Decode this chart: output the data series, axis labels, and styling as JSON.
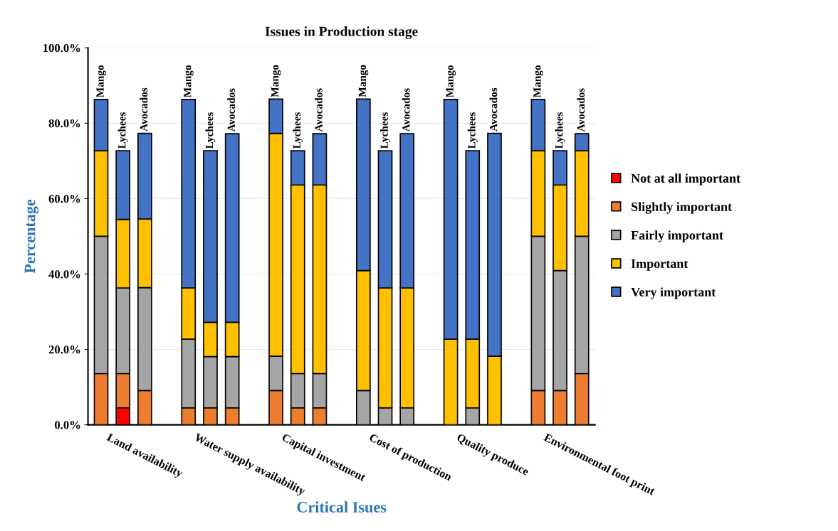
{
  "chart_data": {
    "type": "bar",
    "title": "Issues in Production stage",
    "xlabel": "Critical Isues",
    "ylabel": "Percentage",
    "categories": [
      "Mango",
      "Lychees",
      "Avocados",
      "Mango",
      "Lychees",
      "Avocados",
      "Mango",
      "Lychees",
      "Avocados",
      "Mango",
      "Lychees",
      "Avocados",
      "Mango",
      "Lychees",
      "Avocados",
      "Mango",
      "Lychees",
      "Avocados"
    ],
    "annotations": [
      "Land availability",
      "Water supply availability",
      "Capital investment",
      "Cost of production",
      "Quality produce",
      "Environmental foot print"
    ],
    "stacked": true,
    "series": [
      {
        "name": "Not at all important",
        "color": "#ff0000",
        "values": [
          0,
          4.5,
          0,
          0,
          0,
          0,
          0,
          0,
          0,
          0,
          0,
          0,
          0,
          0,
          0,
          0,
          0,
          0
        ]
      },
      {
        "name": "Slightly important",
        "color": "#ed7d31",
        "values": [
          13.6,
          9.1,
          9.1,
          4.5,
          4.5,
          4.5,
          9.1,
          4.5,
          4.5,
          0,
          0,
          0,
          0,
          0,
          0,
          9.1,
          9.1,
          13.6
        ]
      },
      {
        "name": "Fairly important",
        "color": "#a5a5a5",
        "values": [
          36.4,
          22.7,
          27.3,
          18.2,
          13.6,
          13.6,
          9.1,
          9.1,
          9.1,
          9.1,
          4.5,
          4.5,
          0,
          4.5,
          0,
          40.9,
          31.8,
          36.4
        ]
      },
      {
        "name": "Important",
        "color": "#ffc000",
        "values": [
          22.7,
          18.2,
          18.2,
          13.6,
          9.1,
          9.1,
          59.1,
          50.0,
          50.0,
          31.8,
          31.8,
          31.8,
          22.7,
          18.2,
          18.2,
          22.7,
          22.7,
          22.7
        ]
      },
      {
        "name": "Very important",
        "color": "#4472c4",
        "values": [
          13.6,
          18.2,
          22.7,
          50.0,
          45.5,
          50.0,
          9.1,
          9.1,
          13.6,
          45.5,
          36.4,
          40.9,
          63.6,
          50.0,
          59.1,
          13.6,
          9.1,
          4.5
        ]
      }
    ],
    "ylim": [
      0,
      100
    ],
    "yticks": [
      {
        "value": 0,
        "label": "0.0%"
      },
      {
        "value": 20,
        "label": "20.0%"
      },
      {
        "value": 40,
        "label": "40.0%"
      },
      {
        "value": 60,
        "label": "60.0%"
      },
      {
        "value": 80,
        "label": "80.0%"
      },
      {
        "value": 100,
        "label": "100.0%"
      }
    ],
    "grid": "y",
    "legend": "right"
  }
}
